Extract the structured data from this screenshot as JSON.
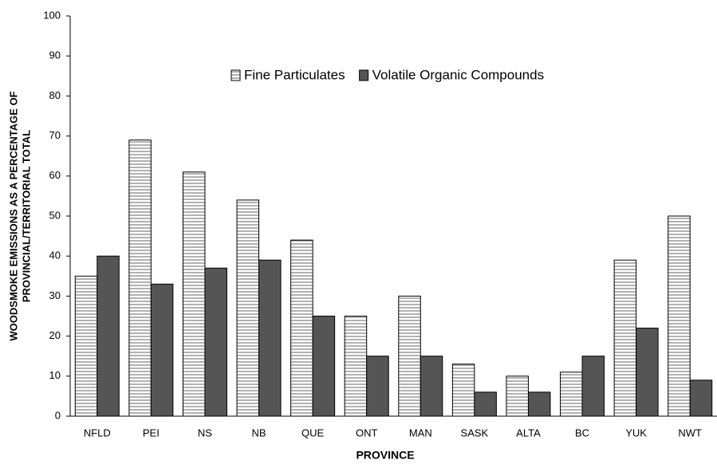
{
  "chart_data": {
    "type": "bar",
    "x_label": "PROVINCE",
    "y_label": [
      "WOODSMOKE EMISSIONS AS A PERCENTAGE OF",
      "PROVINCIAL/TERRITORIAL TOTAL"
    ],
    "categories": [
      "NFLD",
      "PEI",
      "NS",
      "NB",
      "QUE",
      "ONT",
      "MAN",
      "SASK",
      "ALTA",
      "BC",
      "YUK",
      "NWT"
    ],
    "series": [
      {
        "name": "Fine Particulates",
        "color": "#ffffff",
        "pattern": "horizontal-lines",
        "values": [
          35,
          69,
          61,
          54,
          44,
          25,
          30,
          13,
          10,
          11,
          39,
          50
        ]
      },
      {
        "name": "Volatile Organic Compounds",
        "color": "#555555",
        "values": [
          40,
          33,
          37,
          39,
          25,
          15,
          15,
          6,
          6,
          15,
          22,
          9
        ]
      }
    ],
    "ylim": [
      0,
      100
    ],
    "yticks": [
      0,
      10,
      20,
      30,
      40,
      50,
      60,
      70,
      80,
      90,
      100
    ],
    "grid": false
  }
}
